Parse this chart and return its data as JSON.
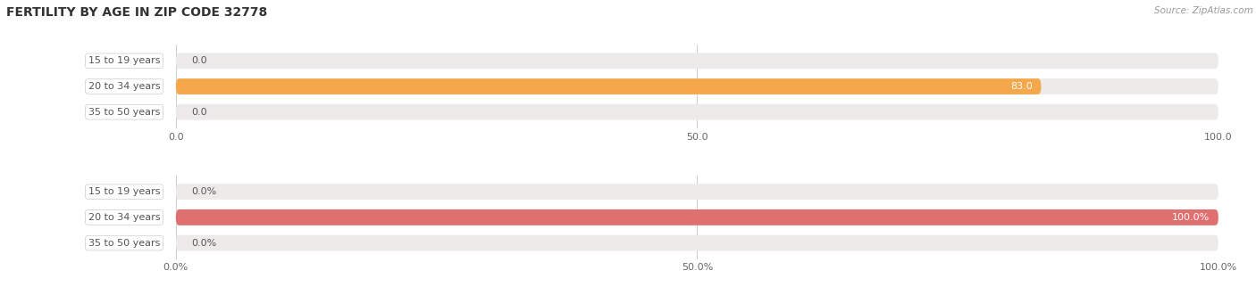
{
  "title": "FERTILITY BY AGE IN ZIP CODE 32778",
  "source": "Source: ZipAtlas.com",
  "top_chart": {
    "categories": [
      "15 to 19 years",
      "20 to 34 years",
      "35 to 50 years"
    ],
    "values": [
      0.0,
      83.0,
      0.0
    ],
    "xlim": [
      0,
      100
    ],
    "xticks": [
      0.0,
      50.0,
      100.0
    ],
    "xtick_labels": [
      "0.0",
      "50.0",
      "100.0"
    ],
    "bar_color": "#F5A84B",
    "bar_bg_color": "#EDEAEA",
    "label_bg_color": "#FFFFFF",
    "label_color": "#555555",
    "value_color_inside": "#FFFFFF",
    "value_color_outside": "#555555"
  },
  "bottom_chart": {
    "categories": [
      "15 to 19 years",
      "20 to 34 years",
      "35 to 50 years"
    ],
    "values": [
      0.0,
      100.0,
      0.0
    ],
    "xlim": [
      0,
      100
    ],
    "xticks": [
      0.0,
      50.0,
      100.0
    ],
    "xtick_labels": [
      "0.0%",
      "50.0%",
      "100.0%"
    ],
    "bar_color": "#E07070",
    "bar_bg_color": "#EDEAEA",
    "label_bg_color": "#FFFFFF",
    "label_color": "#555555",
    "value_color_inside": "#FFFFFF",
    "value_color_outside": "#555555"
  },
  "bg_color": "#FFFFFF",
  "title_fontsize": 10,
  "label_fontsize": 8,
  "value_fontsize": 8,
  "tick_fontsize": 8
}
